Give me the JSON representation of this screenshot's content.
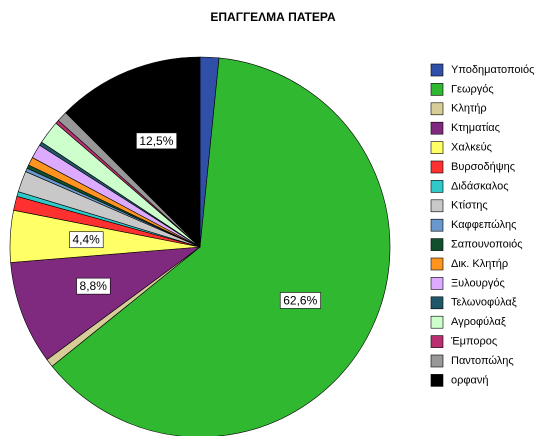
{
  "chart_data": {
    "type": "pie",
    "title": "ΕΠΑΓΓΕΛΜΑ ΠΑΤΕΡΑ",
    "categories": [
      "Υποδηματοποιός",
      "Γεωργός",
      "Κλητήρ",
      "Κτηματίας",
      "Χαλκεύς",
      "Βυρσοδήψης",
      "Διδάσκαλος",
      "Κτίστης",
      "Καφφεπώλης",
      "Σαπουνοποιός",
      "Δικ. Κλητήρ",
      "Ξυλουργός",
      "Τελωνοφύλαξ",
      "Αγροφύλαξ",
      "Έμπορος",
      "Παντοπώλης",
      "ορφανή"
    ],
    "values": [
      1.6,
      62.6,
      0.7,
      8.8,
      4.4,
      1.2,
      0.4,
      1.8,
      0.3,
      0.3,
      0.7,
      1.2,
      0.3,
      2.0,
      0.3,
      0.9,
      12.5
    ],
    "value_labels": [
      null,
      "62,6%",
      null,
      "8,8%",
      "4,4%",
      null,
      null,
      null,
      null,
      null,
      null,
      null,
      null,
      null,
      null,
      null,
      "12,5%"
    ],
    "colors": [
      "#3050a8",
      "#30b830",
      "#d8cc98",
      "#7f2a7f",
      "#ffff66",
      "#ff3030",
      "#30c8c8",
      "#c8c8c8",
      "#6898cc",
      "#10502e",
      "#ff9420",
      "#dcaaff",
      "#20586a",
      "#ccffcc",
      "#b83070",
      "#989898",
      "#000000"
    ],
    "legend": "right"
  }
}
